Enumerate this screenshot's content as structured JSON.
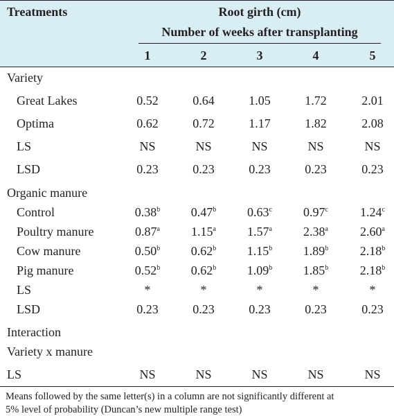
{
  "table": {
    "header": {
      "treatments": "Treatments",
      "group_title": "Root girth (cm)",
      "subgroup_title": "Number of weeks after transplanting",
      "weeks": [
        "1",
        "2",
        "3",
        "4",
        "5"
      ]
    },
    "sections": {
      "variety": "Variety",
      "organic_manure": "Organic manure",
      "interaction": "Interaction",
      "variety_x_manure": "Variety x manure"
    },
    "rows": [
      {
        "label": "Great Lakes",
        "cells": [
          {
            "v": "0.52",
            "s": ""
          },
          {
            "v": "0.64",
            "s": ""
          },
          {
            "v": "1.05",
            "s": ""
          },
          {
            "v": "1.72",
            "s": ""
          },
          {
            "v": "2.01",
            "s": ""
          }
        ]
      },
      {
        "label": "Optima",
        "cells": [
          {
            "v": "0.62",
            "s": ""
          },
          {
            "v": "0.72",
            "s": ""
          },
          {
            "v": "1.17",
            "s": ""
          },
          {
            "v": "1.82",
            "s": ""
          },
          {
            "v": "2.08",
            "s": ""
          }
        ]
      },
      {
        "label": "LS",
        "cells": [
          {
            "v": "NS",
            "s": ""
          },
          {
            "v": "NS",
            "s": ""
          },
          {
            "v": "NS",
            "s": ""
          },
          {
            "v": "NS",
            "s": ""
          },
          {
            "v": "NS",
            "s": ""
          }
        ]
      },
      {
        "label": "LSD",
        "cells": [
          {
            "v": "0.23",
            "s": ""
          },
          {
            "v": "0.23",
            "s": ""
          },
          {
            "v": "0.23",
            "s": ""
          },
          {
            "v": "0.23",
            "s": ""
          },
          {
            "v": "0.23",
            "s": ""
          }
        ]
      },
      {
        "label": "Control",
        "cells": [
          {
            "v": "0.38",
            "s": "b"
          },
          {
            "v": "0.47",
            "s": "b"
          },
          {
            "v": "0.63",
            "s": "c"
          },
          {
            "v": "0.97",
            "s": "c"
          },
          {
            "v": "1.24",
            "s": "c"
          }
        ]
      },
      {
        "label": "Poultry manure",
        "cells": [
          {
            "v": "0.87",
            "s": "a"
          },
          {
            "v": "1.15",
            "s": "a"
          },
          {
            "v": "1.57",
            "s": "a"
          },
          {
            "v": "2.38",
            "s": "a"
          },
          {
            "v": "2.60",
            "s": "a"
          }
        ]
      },
      {
        "label": "Cow manure",
        "cells": [
          {
            "v": "0.50",
            "s": "b"
          },
          {
            "v": "0.62",
            "s": "b"
          },
          {
            "v": "1.15",
            "s": "b"
          },
          {
            "v": "1.89",
            "s": "b"
          },
          {
            "v": "2.18",
            "s": "b"
          }
        ]
      },
      {
        "label": "Pig manure",
        "cells": [
          {
            "v": "0.52",
            "s": "b"
          },
          {
            "v": "0.62",
            "s": "b"
          },
          {
            "v": "1.09",
            "s": "b"
          },
          {
            "v": "1.85",
            "s": "b"
          },
          {
            "v": "2.18",
            "s": "b"
          }
        ]
      },
      {
        "label": "LS",
        "cells": [
          {
            "v": "*",
            "s": ""
          },
          {
            "v": "*",
            "s": ""
          },
          {
            "v": "*",
            "s": ""
          },
          {
            "v": "*",
            "s": ""
          },
          {
            "v": "*",
            "s": ""
          }
        ]
      },
      {
        "label": "LSD",
        "cells": [
          {
            "v": "0.23",
            "s": ""
          },
          {
            "v": "0.23",
            "s": ""
          },
          {
            "v": "0.23",
            "s": ""
          },
          {
            "v": "0.23",
            "s": ""
          },
          {
            "v": "0.23",
            "s": ""
          }
        ]
      },
      {
        "label": "LS",
        "cells": [
          {
            "v": "NS",
            "s": ""
          },
          {
            "v": "NS",
            "s": ""
          },
          {
            "v": "NS",
            "s": ""
          },
          {
            "v": "NS",
            "s": ""
          },
          {
            "v": "NS",
            "s": ""
          }
        ]
      }
    ],
    "footnote_line1": "Means followed by the same letter(s) in a column are not significantly different at",
    "footnote_line2": "5% level of probability (Duncan’s new multiple range test)"
  }
}
